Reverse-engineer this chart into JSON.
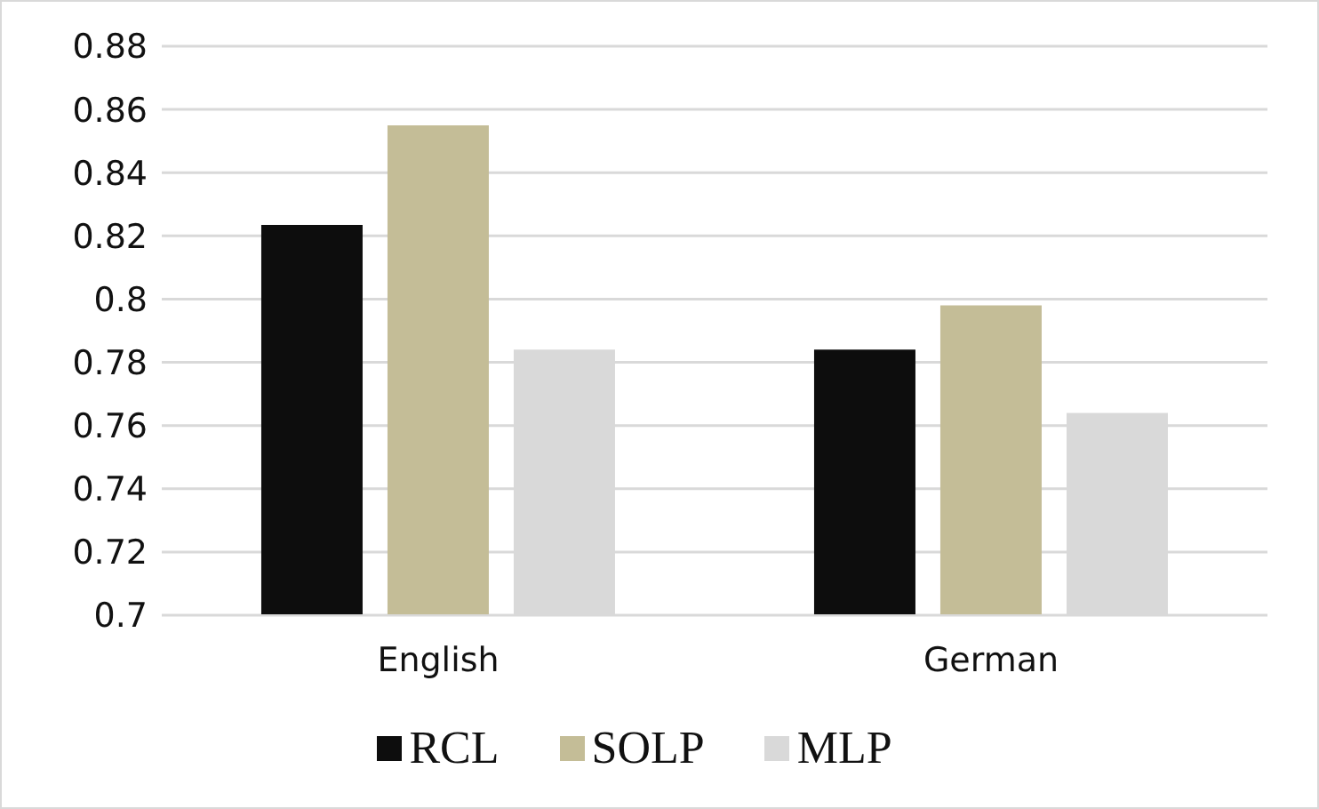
{
  "chart_data": {
    "type": "bar",
    "categories": [
      "English",
      "German"
    ],
    "series": [
      {
        "name": "RCL",
        "color": "#0d0d0d",
        "values": [
          0.8235,
          0.784
        ]
      },
      {
        "name": "SOLP",
        "color": "#c4bd97",
        "values": [
          0.855,
          0.798
        ]
      },
      {
        "name": "MLP",
        "color": "#d9d9d9",
        "values": [
          0.784,
          0.764
        ]
      }
    ],
    "ylim": [
      0.7,
      0.88
    ],
    "yticks": [
      0.7,
      0.72,
      0.74,
      0.76,
      0.78,
      0.8,
      0.82,
      0.84,
      0.86,
      0.88
    ],
    "grid": "y",
    "legend": "bottom"
  }
}
